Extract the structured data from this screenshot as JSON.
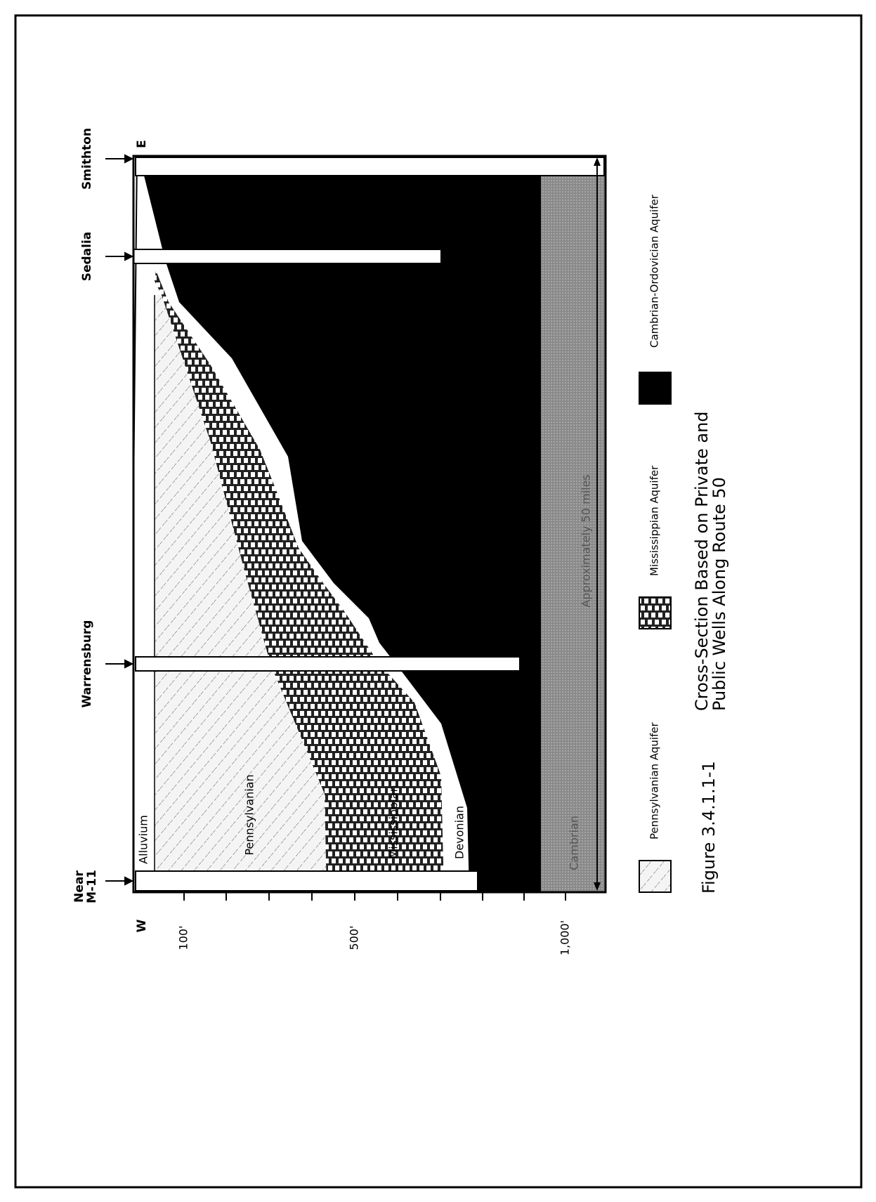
{
  "figure": {
    "wells": [
      {
        "name_lines": [
          "Near",
          "M-11"
        ]
      },
      {
        "name_lines": [
          "Warrensburg"
        ]
      },
      {
        "name_lines": [
          "Sedalia"
        ]
      },
      {
        "name_lines": [
          "Smithton"
        ]
      }
    ],
    "directions": {
      "west": "W",
      "east": "E"
    },
    "depth_labels": [
      "100'",
      "500'",
      "1,000'"
    ],
    "layers": [
      "Alluvium",
      "Pennsylvanian",
      "Mississippian",
      "Devonian",
      "Cambrian"
    ],
    "distance": "Approximately 50 miles",
    "legend": [
      "Pennsylvanian Aquifer",
      "Mississippian Aquifer",
      "Cambrian-Ordovician Aquifer"
    ],
    "caption": {
      "number": "Figure 3.4.1.1-1",
      "title_lines": [
        "Cross-Section Based on Private and",
        "Public Wells Along Route 50"
      ]
    }
  }
}
